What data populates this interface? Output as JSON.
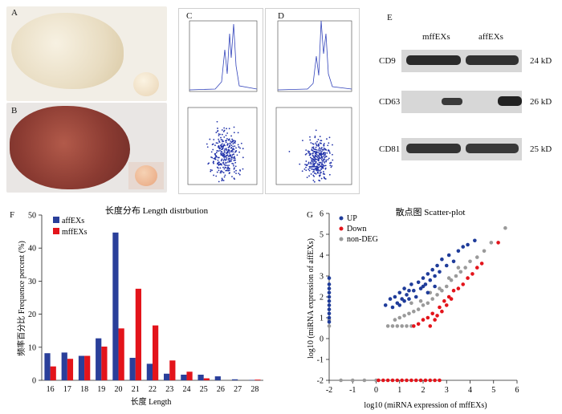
{
  "panels": {
    "a": "A",
    "b": "B",
    "c": "C",
    "d": "D",
    "e": "E",
    "f": "F",
    "g": "G"
  },
  "blot": {
    "lanes": [
      "mffEXs",
      "affEXs"
    ],
    "rows": [
      {
        "label": "CD9",
        "size": "24 kD"
      },
      {
        "label": "CD63",
        "size": "26 kD"
      },
      {
        "label": "CD81",
        "size": "25 kD"
      }
    ]
  },
  "colors": {
    "affEXs": "#2a3f9a",
    "mffEXs": "#e3141b",
    "up": "#1f3c9a",
    "down": "#e3141b",
    "nondeg": "#9a9a9a"
  },
  "chart_data": [
    {
      "type": "bar",
      "title": "长度分布 Length distrbution",
      "xlabel": "长度 Length",
      "ylabel": "频率百分比 Frequence percent (%)",
      "categories": [
        "16",
        "17",
        "18",
        "19",
        "20",
        "21",
        "22",
        "23",
        "24",
        "25",
        "26",
        "27",
        "28"
      ],
      "series": [
        {
          "name": "affEXs",
          "values": [
            8.2,
            8.4,
            7.4,
            12.7,
            44.7,
            6.8,
            5.0,
            2.0,
            1.7,
            1.7,
            1.2,
            0.3,
            0.1
          ]
        },
        {
          "name": "mffEXs",
          "values": [
            4.2,
            6.5,
            7.4,
            10.2,
            15.7,
            27.7,
            16.6,
            6.0,
            2.6,
            0.6,
            0.0,
            0.0,
            0.2
          ]
        }
      ],
      "ylim": [
        0,
        50
      ],
      "yticks": [
        "0",
        "10",
        "20",
        "30",
        "40",
        "50"
      ],
      "legend": "top-left"
    },
    {
      "type": "scatter",
      "title": "散点图 Scatter-plot",
      "xlabel": "log10 (miRNA expression of mffEXs)",
      "ylabel": "log10 (miRNA expression of affEXs)",
      "xlim": [
        -2,
        6
      ],
      "ylim": [
        -2,
        6
      ],
      "xticks": [
        "-2",
        "-1",
        "0",
        "1",
        "2",
        "3",
        "4",
        "5",
        "6"
      ],
      "yticks": [
        "-2",
        "-1",
        "0",
        "1",
        "2",
        "3",
        "4",
        "5",
        "6"
      ],
      "legend": "top-left",
      "series": [
        {
          "name": "UP",
          "points": [
            [
              -2,
              2.6
            ],
            [
              -2,
              2.4
            ],
            [
              -2,
              2.2
            ],
            [
              -2,
              2.0
            ],
            [
              -2,
              1.8
            ],
            [
              -2,
              1.6
            ],
            [
              -2,
              1.4
            ],
            [
              -2,
              1.2
            ],
            [
              -2,
              1.0
            ],
            [
              -2,
              2.9
            ],
            [
              -2,
              0.8
            ],
            [
              0.4,
              1.6
            ],
            [
              0.6,
              1.9
            ],
            [
              0.8,
              2.0
            ],
            [
              0.9,
              1.7
            ],
            [
              1.0,
              2.2
            ],
            [
              1.1,
              1.9
            ],
            [
              1.2,
              2.4
            ],
            [
              1.3,
              2.1
            ],
            [
              1.4,
              1.9
            ],
            [
              1.5,
              2.6
            ],
            [
              1.6,
              2.3
            ],
            [
              1.7,
              2.0
            ],
            [
              1.8,
              2.7
            ],
            [
              1.9,
              2.4
            ],
            [
              2.0,
              2.9
            ],
            [
              2.1,
              2.6
            ],
            [
              2.2,
              3.1
            ],
            [
              2.3,
              2.8
            ],
            [
              2.4,
              3.3
            ],
            [
              2.5,
              3.0
            ],
            [
              2.6,
              3.5
            ],
            [
              2.7,
              3.2
            ],
            [
              2.8,
              3.8
            ],
            [
              3.0,
              3.5
            ],
            [
              3.1,
              4.0
            ],
            [
              3.3,
              3.7
            ],
            [
              3.5,
              4.2
            ],
            [
              3.7,
              4.4
            ],
            [
              3.9,
              4.5
            ],
            [
              4.2,
              4.7
            ],
            [
              0.7,
              1.5
            ],
            [
              1.0,
              1.6
            ],
            [
              1.2,
              1.8
            ],
            [
              1.4,
              2.3
            ],
            [
              2.0,
              2.5
            ],
            [
              2.2,
              2.2
            ],
            [
              2.5,
              2.5
            ]
          ]
        },
        {
          "name": "Down",
          "points": [
            [
              0.1,
              -2
            ],
            [
              0.3,
              -2
            ],
            [
              0.5,
              -2
            ],
            [
              0.7,
              -2
            ],
            [
              0.9,
              -2
            ],
            [
              1.1,
              -2
            ],
            [
              1.3,
              -2
            ],
            [
              1.5,
              -2
            ],
            [
              1.7,
              -2
            ],
            [
              1.9,
              -2
            ],
            [
              2.1,
              -2
            ],
            [
              2.3,
              -2
            ],
            [
              2.5,
              -2
            ],
            [
              2.7,
              -2
            ],
            [
              1.8,
              0.7
            ],
            [
              2.0,
              0.9
            ],
            [
              2.2,
              1.0
            ],
            [
              2.4,
              1.2
            ],
            [
              2.6,
              1.1
            ],
            [
              2.7,
              1.5
            ],
            [
              2.8,
              1.3
            ],
            [
              2.9,
              1.8
            ],
            [
              3.0,
              1.6
            ],
            [
              3.1,
              2.0
            ],
            [
              3.2,
              1.9
            ],
            [
              3.3,
              2.3
            ],
            [
              3.5,
              2.4
            ],
            [
              3.7,
              2.6
            ],
            [
              3.9,
              2.9
            ],
            [
              4.1,
              3.1
            ],
            [
              4.3,
              3.4
            ],
            [
              4.5,
              3.6
            ],
            [
              5.2,
              4.6
            ],
            [
              1.6,
              0.6
            ],
            [
              2.3,
              0.6
            ],
            [
              2.5,
              0.9
            ]
          ]
        },
        {
          "name": "non-DEG",
          "points": [
            [
              0.5,
              0.6
            ],
            [
              0.7,
              0.6
            ],
            [
              0.9,
              0.6
            ],
            [
              1.1,
              0.6
            ],
            [
              1.3,
              0.6
            ],
            [
              1.5,
              0.6
            ],
            [
              0.8,
              0.9
            ],
            [
              1.0,
              1.0
            ],
            [
              1.2,
              1.1
            ],
            [
              1.4,
              1.2
            ],
            [
              1.6,
              1.3
            ],
            [
              1.8,
              1.4
            ],
            [
              2.0,
              1.6
            ],
            [
              2.2,
              1.7
            ],
            [
              2.4,
              1.9
            ],
            [
              2.6,
              2.1
            ],
            [
              2.8,
              2.3
            ],
            [
              3.0,
              2.5
            ],
            [
              3.2,
              2.8
            ],
            [
              3.4,
              3.0
            ],
            [
              3.6,
              3.2
            ],
            [
              3.8,
              3.4
            ],
            [
              4.0,
              3.7
            ],
            [
              4.3,
              3.9
            ],
            [
              4.6,
              4.2
            ],
            [
              4.9,
              4.6
            ],
            [
              5.5,
              5.3
            ],
            [
              -1.5,
              -2
            ],
            [
              -1.0,
              -2
            ],
            [
              -0.5,
              -2
            ],
            [
              0.0,
              -2
            ],
            [
              1.5,
              1.7
            ],
            [
              1.9,
              1.8
            ],
            [
              2.3,
              2.2
            ],
            [
              2.7,
              2.4
            ],
            [
              3.1,
              2.9
            ],
            [
              3.5,
              3.4
            ],
            [
              -2,
              0.6
            ],
            [
              -2,
              0.9
            ]
          ]
        }
      ]
    }
  ]
}
